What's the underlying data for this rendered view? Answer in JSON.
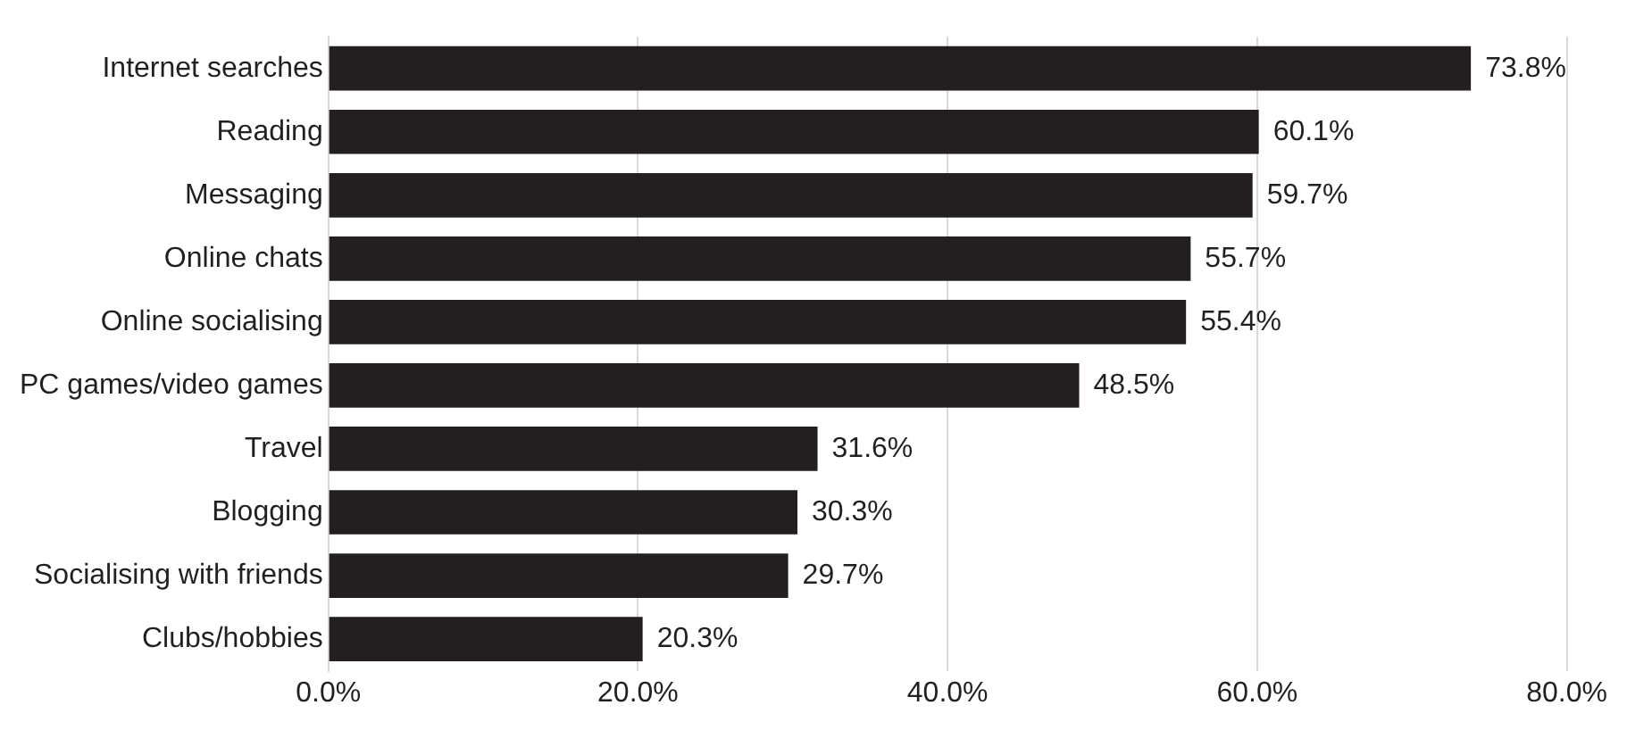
{
  "chart_data": {
    "type": "bar",
    "orientation": "horizontal",
    "categories": [
      "Internet searches",
      "Reading",
      "Messaging",
      "Online chats",
      "Online socialising",
      "PC games/video games",
      "Travel",
      "Blogging",
      "Socialising with friends",
      "Clubs/hobbies"
    ],
    "values": [
      73.8,
      60.1,
      59.7,
      55.7,
      55.4,
      48.5,
      31.6,
      30.3,
      29.7,
      20.3
    ],
    "value_labels": [
      "73.8%",
      "60.1%",
      "59.7%",
      "55.7%",
      "55.4%",
      "48.5%",
      "31.6%",
      "30.3%",
      "29.7%",
      "20.3%"
    ],
    "color": "#231f20",
    "xlim": [
      0,
      80
    ],
    "xticks": [
      {
        "value": 0,
        "label": "0.0%"
      },
      {
        "value": 20,
        "label": "20.0%"
      },
      {
        "value": 40,
        "label": "40.0%"
      },
      {
        "value": 60,
        "label": "60.0%"
      },
      {
        "value": 80,
        "label": "80.0%"
      }
    ],
    "grid": "x"
  }
}
